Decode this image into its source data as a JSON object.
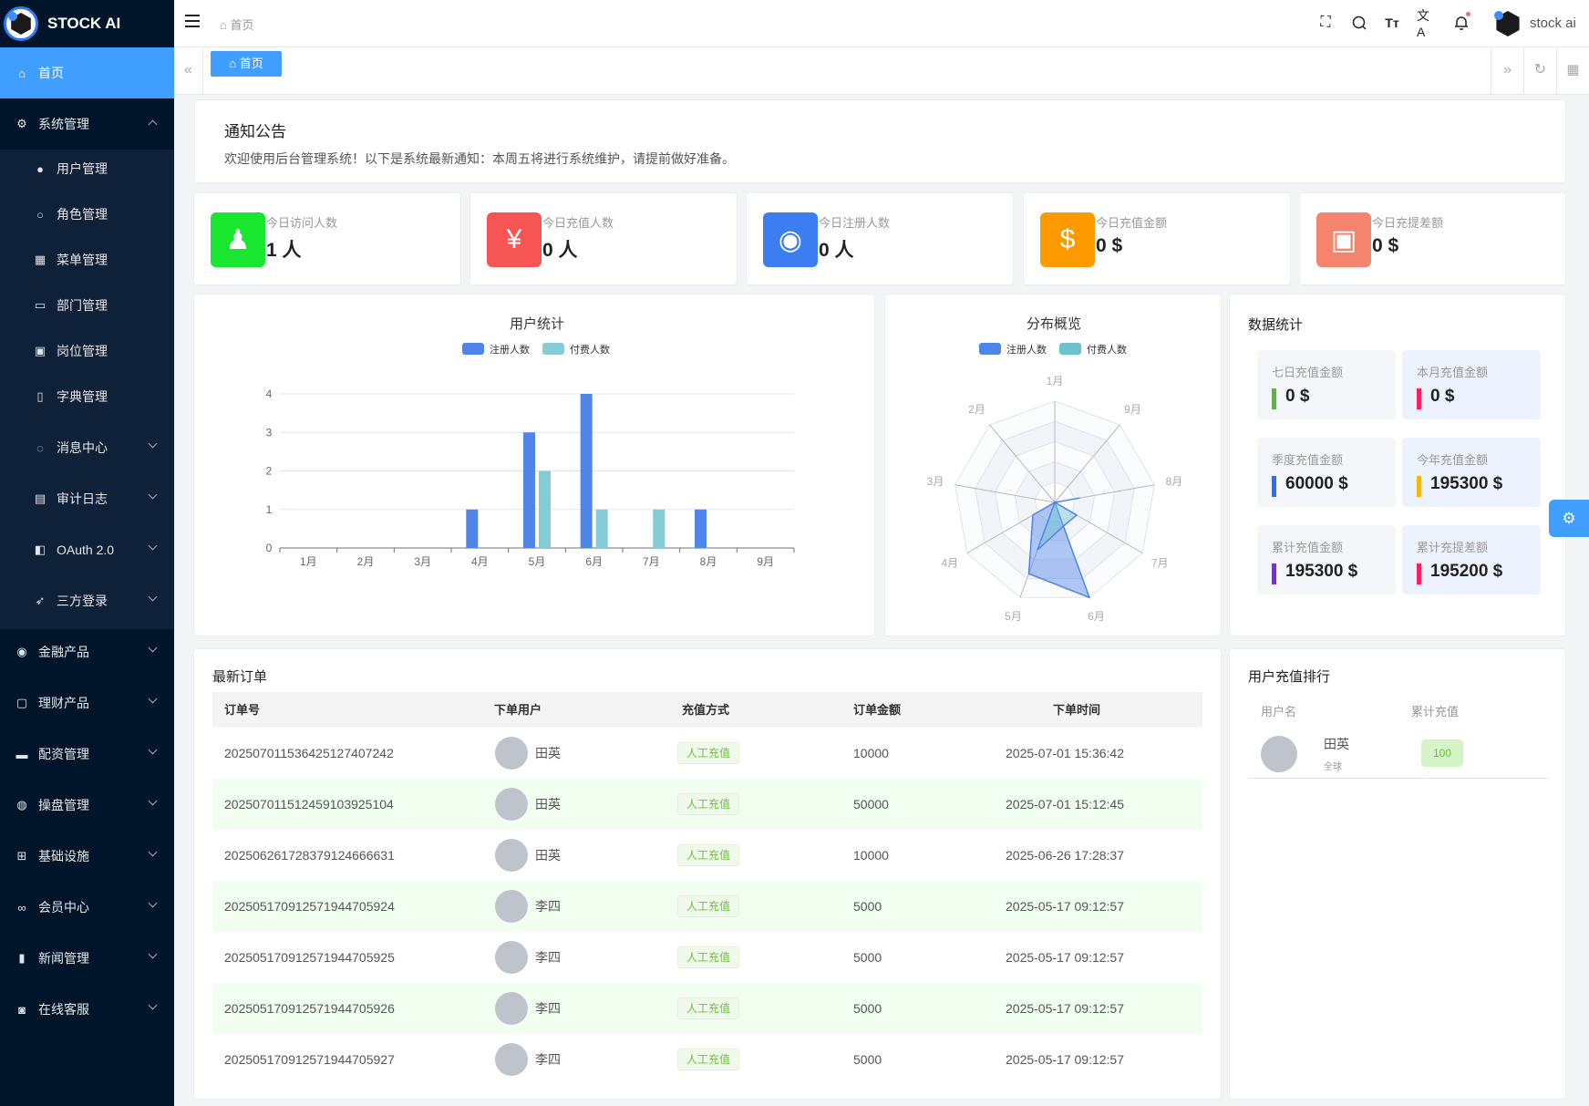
{
  "app": {
    "title": "STOCK AI",
    "user": "stock ai"
  },
  "sidebar": {
    "home": "首页",
    "system": "系统管理",
    "sub_items": [
      {
        "label": "用户管理",
        "icon": "user-icon"
      },
      {
        "label": "角色管理",
        "icon": "role-icon"
      },
      {
        "label": "菜单管理",
        "icon": "grid-icon"
      },
      {
        "label": "部门管理",
        "icon": "department-icon"
      },
      {
        "label": "岗位管理",
        "icon": "post-icon"
      },
      {
        "label": "字典管理",
        "icon": "dictionary-icon"
      },
      {
        "label": "消息中心",
        "icon": "message-icon"
      },
      {
        "label": "审计日志",
        "icon": "log-icon"
      },
      {
        "label": "OAuth 2.0",
        "icon": "oauth-icon"
      },
      {
        "label": "三方登录",
        "icon": "rocket-icon"
      }
    ],
    "items": [
      {
        "label": "金融产品",
        "icon": "finance-icon"
      },
      {
        "label": "理财产品",
        "icon": "wealth-icon"
      },
      {
        "label": "配资管理",
        "icon": "funding-icon"
      },
      {
        "label": "操盘管理",
        "icon": "globe-icon"
      },
      {
        "label": "基础设施",
        "icon": "infrastructure-icon"
      },
      {
        "label": "会员中心",
        "icon": "bike-icon"
      },
      {
        "label": "新闻管理",
        "icon": "book-icon"
      },
      {
        "label": "在线客服",
        "icon": "support-icon"
      }
    ]
  },
  "header": {
    "breadcrumb": "首页",
    "tab": "首页"
  },
  "notice": {
    "title": "通知公告",
    "text": "欢迎使用后台管理系统！以下是系统最新通知：本周五将进行系统维护，请提前做好准备。"
  },
  "stats": [
    {
      "label": "今日访问人数",
      "value": "1 人",
      "color": "#19e62f"
    },
    {
      "label": "今日充值人数",
      "value": "0 人",
      "color": "#f75454"
    },
    {
      "label": "今日注册人数",
      "value": "0 人",
      "color": "#3c7ef2"
    },
    {
      "label": "今日充值金额",
      "value": "0 $",
      "color": "#ff9900"
    },
    {
      "label": "今日充提差额",
      "value": "0 $",
      "color": "#f4846e"
    }
  ],
  "chart_data": [
    {
      "type": "bar",
      "title": "用户统计",
      "categories": [
        "1月",
        "2月",
        "3月",
        "4月",
        "5月",
        "6月",
        "7月",
        "8月",
        "9月"
      ],
      "series": [
        {
          "name": "注册人数",
          "values": [
            0,
            0,
            0,
            1,
            3,
            4,
            0,
            1,
            0
          ],
          "color": "#4f84e8"
        },
        {
          "name": "付费人数",
          "values": [
            0,
            0,
            0,
            0,
            2,
            1,
            1,
            0,
            0
          ],
          "color": "#84ccd6"
        }
      ],
      "ylim": [
        0,
        4
      ],
      "yticks": [
        0,
        1,
        2,
        3,
        4
      ],
      "legend": "top",
      "grid": true
    },
    {
      "type": "radar",
      "title": "分布概览",
      "categories": [
        "1月",
        "2月",
        "3月",
        "4月",
        "5月",
        "6月",
        "7月",
        "8月",
        "9月"
      ],
      "series": [
        {
          "name": "注册人数",
          "values": [
            0,
            0,
            0,
            1,
            3,
            4,
            0,
            1,
            0
          ],
          "color": "#4f84e8"
        },
        {
          "name": "付费人数",
          "values": [
            0,
            0,
            0,
            0,
            2,
            1,
            1,
            0,
            0
          ],
          "color": "#6cc3cf"
        }
      ],
      "max": 4,
      "legend": "top"
    }
  ],
  "data_stats": {
    "title": "数据统计",
    "items": [
      {
        "label": "七日充值金额",
        "value": "0 $",
        "color": "#5cb83c"
      },
      {
        "label": "本月充值金额",
        "value": "0 $",
        "color": "#f5225c"
      },
      {
        "label": "季度充值金额",
        "value": "60000 $",
        "color": "#2f6bff"
      },
      {
        "label": "今年充值金额",
        "value": "195300 $",
        "color": "#f7b617"
      },
      {
        "label": "累计充值金额",
        "value": "195300 $",
        "color": "#7a2bea"
      },
      {
        "label": "累计充提差额",
        "value": "195200 $",
        "color": "#f5225c"
      }
    ]
  },
  "orders": {
    "title": "最新订单",
    "columns": [
      "订单号",
      "下单用户",
      "充值方式",
      "订单金额",
      "下单时间"
    ],
    "rows": [
      {
        "id": "202507011536425127407242",
        "user": "田英",
        "method": "人工充值",
        "amount": "10000",
        "time": "2025-07-01 15:36:42"
      },
      {
        "id": "202507011512459103925104",
        "user": "田英",
        "method": "人工充值",
        "amount": "50000",
        "time": "2025-07-01 15:12:45"
      },
      {
        "id": "202506261728379124666631",
        "user": "田英",
        "method": "人工充值",
        "amount": "10000",
        "time": "2025-06-26 17:28:37"
      },
      {
        "id": "202505170912571944705924",
        "user": "李四",
        "method": "人工充值",
        "amount": "5000",
        "time": "2025-05-17 09:12:57"
      },
      {
        "id": "202505170912571944705925",
        "user": "李四",
        "method": "人工充值",
        "amount": "5000",
        "time": "2025-05-17 09:12:57"
      },
      {
        "id": "202505170912571944705926",
        "user": "李四",
        "method": "人工充值",
        "amount": "5000",
        "time": "2025-05-17 09:12:57"
      },
      {
        "id": "202505170912571944705927",
        "user": "李四",
        "method": "人工充值",
        "amount": "5000",
        "time": "2025-05-17 09:12:57"
      }
    ]
  },
  "ranking": {
    "title": "用户充值排行",
    "columns": [
      "用户名",
      "累计充值"
    ],
    "rows": [
      {
        "name": "田英",
        "region": "全球",
        "total": "100"
      }
    ]
  }
}
